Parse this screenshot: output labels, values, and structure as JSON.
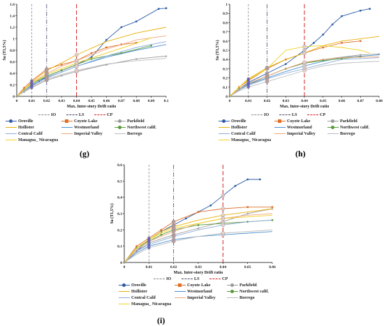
{
  "captions": [
    "(g)",
    "(h)",
    "(i)"
  ],
  "legend_items": [
    {
      "key": "IO",
      "label": "IO",
      "color": "#888888",
      "dash": "3,2"
    },
    {
      "key": "LS",
      "label": "LS",
      "color": "#444466",
      "dash": "6,2,1,2"
    },
    {
      "key": "CP",
      "label": "CP",
      "color": "#d22020",
      "dash": "6,3"
    },
    {
      "key": "Oroville",
      "label": "Oroville",
      "color": "#2b5aa6",
      "marker": "circle"
    },
    {
      "key": "Coyote Lake",
      "label": "Coyote Lake",
      "color": "#e0702a",
      "marker": "square"
    },
    {
      "key": "Parkfield",
      "label": "Parkfield",
      "color": "#999999",
      "marker": "triangle"
    },
    {
      "key": "Hollister",
      "label": "Hollister",
      "color": "#e6b000"
    },
    {
      "key": "Westmorland",
      "label": "Westmorland",
      "color": "#4a90d0"
    },
    {
      "key": "Northwest calif.",
      "label": "Northwest calif.",
      "color": "#5a9a3a",
      "marker": "circle"
    },
    {
      "key": "Central Calif",
      "label": "Central Calif",
      "color": "#8aaad8"
    },
    {
      "key": "Imperial Valley",
      "label": "Imperial Valley",
      "color": "#f0a878"
    },
    {
      "key": "Borrego",
      "label": "Borrego",
      "color": "#bbbbbb"
    },
    {
      "key": "Managua_ Nicaragua",
      "label": "Managua_ Nicaragua",
      "color": "#f0d020"
    }
  ],
  "chart_data": [
    {
      "panel": "(g)",
      "type": "line",
      "xlabel": "Max. Inter-story Drift ratio",
      "ylabel": "Sa (T1,5%)",
      "xlim": [
        0,
        0.1
      ],
      "ylim": [
        0,
        1.6
      ],
      "xticks": [
        "0",
        "0.01",
        "0.02",
        "0.03",
        "0.04",
        "0.05",
        "0.06",
        "0.07",
        "0.08",
        "0.09",
        "0.1"
      ],
      "yticks": [
        "0",
        "0.2",
        "0.4",
        "0.6",
        "0.8",
        "1",
        "1.2",
        "1.4",
        "1.6"
      ],
      "limit_lines": [
        {
          "key": "IO",
          "x": 0.01
        },
        {
          "key": "LS",
          "x": 0.02
        },
        {
          "key": "CP",
          "x": 0.04
        }
      ],
      "series": [
        {
          "name": "Oroville",
          "x": [
            0,
            0.005,
            0.01,
            0.015,
            0.02,
            0.03,
            0.04,
            0.05,
            0.06,
            0.07,
            0.08,
            0.095,
            0.1
          ],
          "y": [
            0,
            0.1,
            0.18,
            0.26,
            0.35,
            0.45,
            0.55,
            0.68,
            0.98,
            1.2,
            1.3,
            1.52,
            1.53
          ]
        },
        {
          "name": "Coyote Lake",
          "x": [
            0,
            0.005,
            0.01,
            0.02,
            0.03,
            0.04,
            0.05,
            0.06,
            0.07,
            0.08
          ],
          "y": [
            0,
            0.15,
            0.27,
            0.47,
            0.55,
            0.62,
            0.75,
            0.85,
            0.9,
            0.93
          ]
        },
        {
          "name": "Parkfield",
          "x": [
            0,
            0.005,
            0.01,
            0.02,
            0.03,
            0.04,
            0.06,
            0.08,
            0.1
          ],
          "y": [
            0,
            0.08,
            0.15,
            0.28,
            0.36,
            0.43,
            0.55,
            0.65,
            0.7
          ]
        },
        {
          "name": "Hollister",
          "x": [
            0,
            0.005,
            0.01,
            0.02,
            0.03,
            0.04,
            0.06,
            0.08,
            0.1
          ],
          "y": [
            0,
            0.12,
            0.25,
            0.45,
            0.58,
            0.72,
            0.95,
            1.1,
            1.2
          ]
        },
        {
          "name": "Westmorland",
          "x": [
            0,
            0.005,
            0.01,
            0.02,
            0.03,
            0.04,
            0.06,
            0.08,
            0.1
          ],
          "y": [
            0,
            0.1,
            0.2,
            0.33,
            0.42,
            0.52,
            0.68,
            0.8,
            0.9
          ]
        },
        {
          "name": "Northwest calif.",
          "x": [
            0,
            0.005,
            0.01,
            0.02,
            0.03,
            0.04,
            0.05,
            0.07,
            0.09
          ],
          "y": [
            0,
            0.12,
            0.22,
            0.35,
            0.45,
            0.55,
            0.65,
            0.75,
            0.88
          ]
        },
        {
          "name": "Central Calif",
          "x": [
            0,
            0.005,
            0.01,
            0.02,
            0.03,
            0.04,
            0.06,
            0.08,
            0.1
          ],
          "y": [
            0,
            0.1,
            0.19,
            0.32,
            0.42,
            0.52,
            0.7,
            0.85,
            0.95
          ]
        },
        {
          "name": "Imperial Valley",
          "x": [
            0,
            0.005,
            0.01,
            0.02,
            0.03,
            0.04,
            0.06,
            0.08,
            0.1
          ],
          "y": [
            0,
            0.12,
            0.23,
            0.4,
            0.52,
            0.62,
            0.82,
            0.98,
            1.05
          ]
        },
        {
          "name": "Borrego",
          "x": [
            0,
            0.005,
            0.01,
            0.02,
            0.03,
            0.04,
            0.06,
            0.08,
            0.1
          ],
          "y": [
            0,
            0.09,
            0.17,
            0.3,
            0.38,
            0.45,
            0.56,
            0.62,
            0.66
          ]
        },
        {
          "name": "Managua_ Nicaragua",
          "x": [
            0,
            0.005,
            0.01,
            0.02,
            0.03,
            0.04,
            0.06,
            0.08,
            0.09
          ],
          "y": [
            0,
            0.12,
            0.22,
            0.38,
            0.48,
            0.58,
            0.75,
            0.92,
            1.02
          ]
        }
      ]
    },
    {
      "panel": "(h)",
      "type": "line",
      "xlabel": "Max. Inter-story Drift ratio",
      "ylabel": "Sa (T1,5%)",
      "xlim": [
        0,
        0.08
      ],
      "ylim": [
        0,
        1
      ],
      "xticks": [
        "0",
        "0.01",
        "0.02",
        "0.03",
        "0.04",
        "0.05",
        "0.06",
        "0.07",
        "0.08"
      ],
      "yticks": [
        "0",
        "0.1",
        "0.2",
        "0.3",
        "0.4",
        "0.5",
        "0.6",
        "0.7",
        "0.8",
        "0.9",
        "1"
      ],
      "limit_lines": [
        {
          "key": "IO",
          "x": 0.01
        },
        {
          "key": "LS",
          "x": 0.02
        },
        {
          "key": "CP",
          "x": 0.04
        }
      ],
      "series": [
        {
          "name": "Oroville",
          "x": [
            0,
            0.005,
            0.01,
            0.02,
            0.03,
            0.04,
            0.045,
            0.05,
            0.055,
            0.06,
            0.07,
            0.075
          ],
          "y": [
            0,
            0.08,
            0.15,
            0.25,
            0.35,
            0.5,
            0.58,
            0.67,
            0.78,
            0.87,
            0.93,
            0.95
          ]
        },
        {
          "name": "Coyote Lake",
          "x": [
            0,
            0.005,
            0.01,
            0.02,
            0.03,
            0.04,
            0.05,
            0.06,
            0.07
          ],
          "y": [
            0,
            0.1,
            0.17,
            0.3,
            0.4,
            0.47,
            0.53,
            0.58,
            0.6
          ]
        },
        {
          "name": "Parkfield",
          "x": [
            0,
            0.005,
            0.01,
            0.02,
            0.03,
            0.04,
            0.05,
            0.07,
            0.08
          ],
          "y": [
            0,
            0.07,
            0.13,
            0.22,
            0.3,
            0.36,
            0.4,
            0.45,
            0.46
          ]
        },
        {
          "name": "Hollister",
          "x": [
            0,
            0.005,
            0.01,
            0.02,
            0.03,
            0.04,
            0.05,
            0.06,
            0.08
          ],
          "y": [
            0,
            0.1,
            0.19,
            0.31,
            0.4,
            0.47,
            0.55,
            0.6,
            0.65
          ]
        },
        {
          "name": "Westmorland",
          "x": [
            0,
            0.005,
            0.01,
            0.02,
            0.03,
            0.04,
            0.05,
            0.06,
            0.08
          ],
          "y": [
            0,
            0.07,
            0.13,
            0.2,
            0.27,
            0.33,
            0.38,
            0.42,
            0.45
          ]
        },
        {
          "name": "Northwest calif.",
          "x": [
            0,
            0.005,
            0.01,
            0.02,
            0.03,
            0.04,
            0.05,
            0.06,
            0.07
          ],
          "y": [
            0,
            0.08,
            0.14,
            0.22,
            0.3,
            0.36,
            0.39,
            0.41,
            0.43
          ]
        },
        {
          "name": "Central Calif",
          "x": [
            0,
            0.005,
            0.01,
            0.02,
            0.03,
            0.04,
            0.05,
            0.06,
            0.08
          ],
          "y": [
            0,
            0.07,
            0.12,
            0.19,
            0.25,
            0.3,
            0.35,
            0.4,
            0.42
          ]
        },
        {
          "name": "Imperial Valley",
          "x": [
            0,
            0.005,
            0.01,
            0.02,
            0.03,
            0.04,
            0.05,
            0.06,
            0.08
          ],
          "y": [
            0,
            0.08,
            0.14,
            0.22,
            0.3,
            0.37,
            0.4,
            0.42,
            0.43
          ]
        },
        {
          "name": "Borrego",
          "x": [
            0,
            0.005,
            0.01,
            0.02,
            0.03,
            0.04,
            0.05,
            0.06,
            0.08
          ],
          "y": [
            0,
            0.06,
            0.1,
            0.16,
            0.22,
            0.28,
            0.33,
            0.36,
            0.38
          ]
        },
        {
          "name": "Managua_ Nicaragua",
          "x": [
            0,
            0.005,
            0.01,
            0.02,
            0.025,
            0.03,
            0.04,
            0.05,
            0.06,
            0.07,
            0.075
          ],
          "y": [
            0,
            0.1,
            0.18,
            0.3,
            0.4,
            0.5,
            0.54,
            0.55,
            0.53,
            0.5,
            0.47
          ]
        }
      ]
    },
    {
      "panel": "(i)",
      "type": "line",
      "xlabel": "Max. Inter-story Drift ratio",
      "ylabel": "Sa (T1,5%)",
      "xlim": [
        0,
        0.06
      ],
      "ylim": [
        0,
        0.6
      ],
      "xticks": [
        "0",
        "0.01",
        "0.02",
        "0.03",
        "0.04",
        "0.05",
        "0.06"
      ],
      "yticks": [
        "0",
        "0.1",
        "0.2",
        "0.3",
        "0.4",
        "0.5",
        "0.6"
      ],
      "limit_lines": [
        {
          "key": "IO",
          "x": 0.01
        },
        {
          "key": "LS",
          "x": 0.02
        },
        {
          "key": "CP",
          "x": 0.04
        }
      ],
      "series": [
        {
          "name": "Oroville",
          "x": [
            0,
            0.005,
            0.01,
            0.015,
            0.02,
            0.025,
            0.03,
            0.035,
            0.04,
            0.045,
            0.05,
            0.055
          ],
          "y": [
            0,
            0.07,
            0.14,
            0.19,
            0.23,
            0.27,
            0.31,
            0.35,
            0.41,
            0.47,
            0.51,
            0.51
          ]
        },
        {
          "name": "Coyote Lake",
          "x": [
            0,
            0.005,
            0.01,
            0.015,
            0.02,
            0.03,
            0.04,
            0.05,
            0.06
          ],
          "y": [
            0,
            0.1,
            0.15,
            0.2,
            0.25,
            0.31,
            0.33,
            0.34,
            0.34
          ]
        },
        {
          "name": "Parkfield",
          "x": [
            0,
            0.005,
            0.01,
            0.02,
            0.03,
            0.04,
            0.05,
            0.06
          ],
          "y": [
            0,
            0.07,
            0.12,
            0.17,
            0.21,
            0.25,
            0.3,
            0.33
          ]
        },
        {
          "name": "Hollister",
          "x": [
            0,
            0.005,
            0.01,
            0.015,
            0.02,
            0.03,
            0.04,
            0.05,
            0.06
          ],
          "y": [
            0,
            0.09,
            0.14,
            0.19,
            0.22,
            0.26,
            0.29,
            0.31,
            0.33
          ]
        },
        {
          "name": "Westmorland",
          "x": [
            0,
            0.005,
            0.01,
            0.02,
            0.03,
            0.04,
            0.05,
            0.06
          ],
          "y": [
            0,
            0.06,
            0.1,
            0.14,
            0.16,
            0.17,
            0.18,
            0.19
          ]
        },
        {
          "name": "Northwest calif.",
          "x": [
            0,
            0.005,
            0.01,
            0.015,
            0.02,
            0.03,
            0.04,
            0.05,
            0.06
          ],
          "y": [
            0,
            0.09,
            0.13,
            0.17,
            0.2,
            0.23,
            0.24,
            0.25,
            0.26
          ]
        },
        {
          "name": "Central Calif",
          "x": [
            0,
            0.005,
            0.01,
            0.02,
            0.03,
            0.04,
            0.05,
            0.06
          ],
          "y": [
            0,
            0.07,
            0.11,
            0.16,
            0.2,
            0.23,
            0.25,
            0.26
          ]
        },
        {
          "name": "Imperial Valley",
          "x": [
            0,
            0.005,
            0.01,
            0.02,
            0.03,
            0.04,
            0.05,
            0.06
          ],
          "y": [
            0,
            0.08,
            0.13,
            0.19,
            0.24,
            0.27,
            0.29,
            0.3
          ]
        },
        {
          "name": "Borrego",
          "x": [
            0,
            0.005,
            0.01,
            0.02,
            0.03,
            0.04,
            0.05,
            0.06
          ],
          "y": [
            0,
            0.05,
            0.09,
            0.13,
            0.16,
            0.18,
            0.19,
            0.2
          ]
        },
        {
          "name": "Managua_ Nicaragua",
          "x": [
            0,
            0.005,
            0.01,
            0.015,
            0.02,
            0.03,
            0.04,
            0.05,
            0.06
          ],
          "y": [
            0,
            0.09,
            0.14,
            0.18,
            0.21,
            0.24,
            0.27,
            0.28,
            0.29
          ]
        }
      ]
    }
  ]
}
